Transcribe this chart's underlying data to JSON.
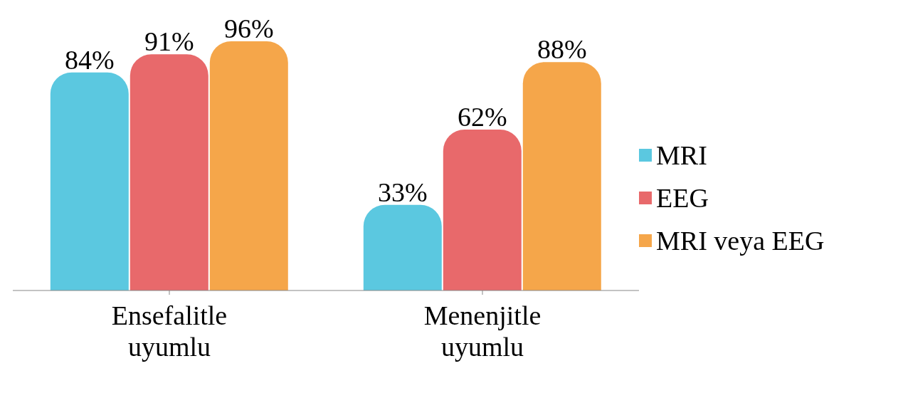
{
  "chart_data": {
    "type": "bar",
    "categories": [
      "Ensefalitle uyumlu",
      "Menenjitle uyumlu"
    ],
    "series": [
      {
        "name": "MRI",
        "color": "#5bc8e0",
        "values": [
          84,
          33
        ],
        "value_labels": [
          "84%",
          "33%"
        ]
      },
      {
        "name": "EEG",
        "color": "#e8696b",
        "values": [
          91,
          62
        ],
        "value_labels": [
          "91%",
          "62%"
        ]
      },
      {
        "name": "MRI veya EEG",
        "color": "#f5a64a",
        "values": [
          96,
          88
        ],
        "value_labels": [
          "96%",
          "88%"
        ]
      }
    ],
    "legend": "right",
    "grid": false
  }
}
